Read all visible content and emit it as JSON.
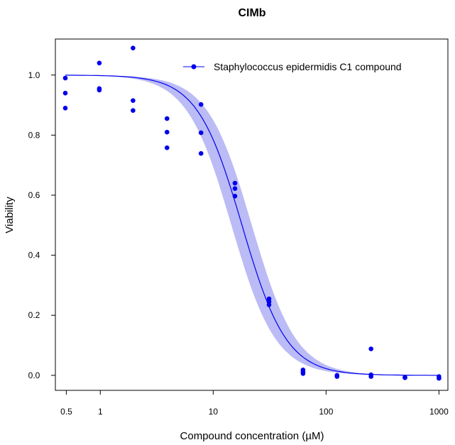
{
  "chart_data": {
    "type": "scatter",
    "title": "CIMb",
    "xlabel": "Compound concentration (µM)",
    "ylabel": "Viability",
    "x_scale": "log",
    "xlim": [
      0.4,
      1200
    ],
    "ylim": [
      -0.05,
      1.12
    ],
    "x_ticks": [
      {
        "value": 0.5,
        "label": "0.5"
      },
      {
        "value": 1,
        "label": "1"
      },
      {
        "value": 10,
        "label": "10"
      },
      {
        "value": 100,
        "label": "100"
      },
      {
        "value": 1000,
        "label": "1000"
      }
    ],
    "y_ticks": [
      {
        "value": 0.0,
        "label": "0.0"
      },
      {
        "value": 0.2,
        "label": "0.2"
      },
      {
        "value": 0.4,
        "label": "0.4"
      },
      {
        "value": 0.6,
        "label": "0.6"
      },
      {
        "value": 0.8,
        "label": "0.8"
      },
      {
        "value": 1.0,
        "label": "1.0"
      }
    ],
    "legend_position": "top-right",
    "grid": false,
    "series": [
      {
        "name": "Staphylococcus epidermidis C1 compound",
        "color": "#0000ee",
        "band_color": "#bbbbf5",
        "points": [
          {
            "x": 0.49,
            "y": 0.99
          },
          {
            "x": 0.49,
            "y": 0.94
          },
          {
            "x": 0.49,
            "y": 0.89
          },
          {
            "x": 0.98,
            "y": 1.04
          },
          {
            "x": 0.98,
            "y": 0.955
          },
          {
            "x": 0.98,
            "y": 0.95
          },
          {
            "x": 1.95,
            "y": 1.09
          },
          {
            "x": 1.95,
            "y": 0.915
          },
          {
            "x": 1.95,
            "y": 0.882
          },
          {
            "x": 3.9,
            "y": 0.855
          },
          {
            "x": 3.9,
            "y": 0.81
          },
          {
            "x": 3.9,
            "y": 0.758
          },
          {
            "x": 7.8,
            "y": 0.902
          },
          {
            "x": 7.8,
            "y": 0.808
          },
          {
            "x": 7.8,
            "y": 0.739
          },
          {
            "x": 15.6,
            "y": 0.64
          },
          {
            "x": 15.6,
            "y": 0.622
          },
          {
            "x": 15.6,
            "y": 0.597
          },
          {
            "x": 31.25,
            "y": 0.255
          },
          {
            "x": 31.25,
            "y": 0.245
          },
          {
            "x": 31.25,
            "y": 0.235
          },
          {
            "x": 62.5,
            "y": 0.018
          },
          {
            "x": 62.5,
            "y": 0.012
          },
          {
            "x": 62.5,
            "y": 0.006
          },
          {
            "x": 125,
            "y": 0.0
          },
          {
            "x": 125,
            "y": -0.002
          },
          {
            "x": 125,
            "y": -0.004
          },
          {
            "x": 250,
            "y": 0.088
          },
          {
            "x": 250,
            "y": 0.002
          },
          {
            "x": 250,
            "y": -0.004
          },
          {
            "x": 500,
            "y": -0.006
          },
          {
            "x": 500,
            "y": -0.008
          },
          {
            "x": 1000,
            "y": -0.004
          },
          {
            "x": 1000,
            "y": -0.01
          }
        ],
        "fit": {
          "top": 1.0,
          "bottom": 0.0,
          "ec50": 18.0,
          "hill": 2.2
        },
        "band": {
          "ec50_low": 14.5,
          "ec50_high": 22.0,
          "hill": 2.2
        }
      }
    ]
  }
}
